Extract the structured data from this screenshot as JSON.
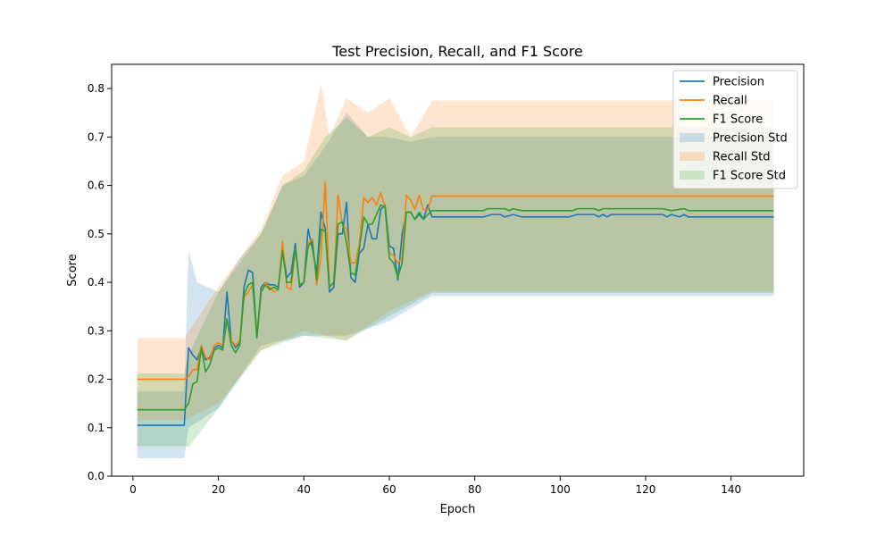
{
  "chart_data": {
    "type": "line",
    "title": "Test Precision, Recall, and F1 Score",
    "xlabel": "Epoch",
    "ylabel": "Score",
    "xlim": [
      -5,
      157
    ],
    "ylim": [
      0,
      0.85
    ],
    "xticks": [
      0,
      20,
      40,
      60,
      80,
      100,
      120,
      140
    ],
    "yticks": [
      0.0,
      0.1,
      0.2,
      0.3,
      0.4,
      0.5,
      0.6,
      0.7,
      0.8
    ],
    "xtick_labels": [
      "0",
      "20",
      "40",
      "60",
      "80",
      "100",
      "120",
      "140"
    ],
    "ytick_labels": [
      "0.0",
      "0.1",
      "0.2",
      "0.3",
      "0.4",
      "0.5",
      "0.6",
      "0.7",
      "0.8"
    ],
    "grid": false,
    "legend_position": "top-right",
    "series": [
      {
        "name": "Precision",
        "color": "#1f77b4",
        "points": [
          [
            1,
            0.105
          ],
          [
            12,
            0.105
          ],
          [
            13,
            0.265
          ],
          [
            14,
            0.25
          ],
          [
            15,
            0.24
          ],
          [
            16,
            0.265
          ],
          [
            17,
            0.24
          ],
          [
            18,
            0.245
          ],
          [
            19,
            0.265
          ],
          [
            20,
            0.27
          ],
          [
            21,
            0.265
          ],
          [
            22,
            0.38
          ],
          [
            23,
            0.28
          ],
          [
            24,
            0.265
          ],
          [
            25,
            0.275
          ],
          [
            26,
            0.39
          ],
          [
            27,
            0.425
          ],
          [
            28,
            0.42
          ],
          [
            29,
            0.29
          ],
          [
            30,
            0.39
          ],
          [
            31,
            0.4
          ],
          [
            32,
            0.395
          ],
          [
            33,
            0.395
          ],
          [
            34,
            0.39
          ],
          [
            35,
            0.47
          ],
          [
            36,
            0.41
          ],
          [
            37,
            0.42
          ],
          [
            38,
            0.48
          ],
          [
            39,
            0.39
          ],
          [
            40,
            0.4
          ],
          [
            41,
            0.51
          ],
          [
            42,
            0.47
          ],
          [
            43,
            0.42
          ],
          [
            44,
            0.545
          ],
          [
            45,
            0.51
          ],
          [
            46,
            0.38
          ],
          [
            47,
            0.39
          ],
          [
            48,
            0.5
          ],
          [
            49,
            0.5
          ],
          [
            50,
            0.565
          ],
          [
            51,
            0.41
          ],
          [
            52,
            0.4
          ],
          [
            53,
            0.46
          ],
          [
            54,
            0.47
          ],
          [
            55,
            0.52
          ],
          [
            56,
            0.49
          ],
          [
            57,
            0.49
          ],
          [
            58,
            0.55
          ],
          [
            59,
            0.56
          ],
          [
            60,
            0.475
          ],
          [
            61,
            0.47
          ],
          [
            62,
            0.405
          ],
          [
            63,
            0.5
          ],
          [
            64,
            0.545
          ],
          [
            65,
            0.545
          ],
          [
            66,
            0.53
          ],
          [
            67,
            0.54
          ],
          [
            68,
            0.53
          ],
          [
            69,
            0.56
          ],
          [
            70,
            0.535
          ],
          [
            82,
            0.535
          ],
          [
            84,
            0.54
          ],
          [
            86,
            0.54
          ],
          [
            87,
            0.535
          ],
          [
            89,
            0.54
          ],
          [
            91,
            0.535
          ],
          [
            102,
            0.535
          ],
          [
            104,
            0.54
          ],
          [
            108,
            0.54
          ],
          [
            109,
            0.535
          ],
          [
            110,
            0.54
          ],
          [
            111,
            0.535
          ],
          [
            112,
            0.54
          ],
          [
            124,
            0.54
          ],
          [
            125,
            0.535
          ],
          [
            126,
            0.54
          ],
          [
            128,
            0.535
          ],
          [
            129,
            0.54
          ],
          [
            130,
            0.535
          ],
          [
            150,
            0.535
          ]
        ],
        "std_lower": [
          [
            1,
            0.037
          ],
          [
            12,
            0.037
          ],
          [
            13,
            0.1
          ],
          [
            20,
            0.14
          ],
          [
            30,
            0.27
          ],
          [
            40,
            0.29
          ],
          [
            50,
            0.29
          ],
          [
            60,
            0.32
          ],
          [
            70,
            0.372
          ],
          [
            150,
            0.372
          ]
        ],
        "std_upper": [
          [
            1,
            0.175
          ],
          [
            12,
            0.175
          ],
          [
            13,
            0.465
          ],
          [
            15,
            0.4
          ],
          [
            20,
            0.38
          ],
          [
            25,
            0.45
          ],
          [
            30,
            0.5
          ],
          [
            35,
            0.6
          ],
          [
            40,
            0.62
          ],
          [
            45,
            0.68
          ],
          [
            50,
            0.75
          ],
          [
            55,
            0.7
          ],
          [
            60,
            0.7
          ],
          [
            65,
            0.69
          ],
          [
            70,
            0.7
          ],
          [
            150,
            0.7
          ]
        ]
      },
      {
        "name": "Recall",
        "color": "#ff7f0e",
        "points": [
          [
            1,
            0.2
          ],
          [
            12,
            0.2
          ],
          [
            13,
            0.205
          ],
          [
            14,
            0.22
          ],
          [
            15,
            0.22
          ],
          [
            16,
            0.27
          ],
          [
            17,
            0.245
          ],
          [
            18,
            0.24
          ],
          [
            19,
            0.27
          ],
          [
            20,
            0.275
          ],
          [
            21,
            0.27
          ],
          [
            22,
            0.32
          ],
          [
            23,
            0.28
          ],
          [
            24,
            0.27
          ],
          [
            25,
            0.28
          ],
          [
            26,
            0.37
          ],
          [
            27,
            0.38
          ],
          [
            28,
            0.395
          ],
          [
            29,
            0.29
          ],
          [
            30,
            0.38
          ],
          [
            31,
            0.4
          ],
          [
            32,
            0.39
          ],
          [
            33,
            0.38
          ],
          [
            34,
            0.385
          ],
          [
            35,
            0.485
          ],
          [
            36,
            0.39
          ],
          [
            37,
            0.385
          ],
          [
            38,
            0.47
          ],
          [
            39,
            0.395
          ],
          [
            40,
            0.4
          ],
          [
            41,
            0.48
          ],
          [
            42,
            0.49
          ],
          [
            43,
            0.395
          ],
          [
            44,
            0.45
          ],
          [
            45,
            0.607
          ],
          [
            46,
            0.39
          ],
          [
            47,
            0.4
          ],
          [
            48,
            0.58
          ],
          [
            49,
            0.52
          ],
          [
            50,
            0.51
          ],
          [
            51,
            0.44
          ],
          [
            52,
            0.44
          ],
          [
            53,
            0.48
          ],
          [
            54,
            0.575
          ],
          [
            55,
            0.565
          ],
          [
            56,
            0.575
          ],
          [
            57,
            0.56
          ],
          [
            58,
            0.585
          ],
          [
            59,
            0.555
          ],
          [
            60,
            0.46
          ],
          [
            61,
            0.455
          ],
          [
            62,
            0.44
          ],
          [
            63,
            0.45
          ],
          [
            64,
            0.58
          ],
          [
            65,
            0.57
          ],
          [
            66,
            0.55
          ],
          [
            67,
            0.58
          ],
          [
            68,
            0.55
          ],
          [
            69,
            0.55
          ],
          [
            70,
            0.578
          ],
          [
            150,
            0.578
          ]
        ],
        "std_lower": [
          [
            1,
            0.115
          ],
          [
            12,
            0.115
          ],
          [
            20,
            0.15
          ],
          [
            30,
            0.26
          ],
          [
            40,
            0.3
          ],
          [
            50,
            0.28
          ],
          [
            60,
            0.34
          ],
          [
            70,
            0.382
          ],
          [
            150,
            0.382
          ]
        ],
        "std_upper": [
          [
            1,
            0.285
          ],
          [
            12,
            0.285
          ],
          [
            20,
            0.39
          ],
          [
            30,
            0.51
          ],
          [
            35,
            0.62
          ],
          [
            40,
            0.65
          ],
          [
            44,
            0.81
          ],
          [
            46,
            0.7
          ],
          [
            50,
            0.78
          ],
          [
            55,
            0.75
          ],
          [
            60,
            0.78
          ],
          [
            65,
            0.7
          ],
          [
            70,
            0.775
          ],
          [
            150,
            0.775
          ]
        ]
      },
      {
        "name": "F1 Score",
        "color": "#2ca02c",
        "points": [
          [
            1,
            0.137
          ],
          [
            12,
            0.137
          ],
          [
            13,
            0.15
          ],
          [
            14,
            0.19
          ],
          [
            15,
            0.195
          ],
          [
            16,
            0.265
          ],
          [
            17,
            0.215
          ],
          [
            18,
            0.23
          ],
          [
            19,
            0.26
          ],
          [
            20,
            0.265
          ],
          [
            21,
            0.26
          ],
          [
            22,
            0.325
          ],
          [
            23,
            0.27
          ],
          [
            24,
            0.255
          ],
          [
            25,
            0.27
          ],
          [
            26,
            0.375
          ],
          [
            27,
            0.395
          ],
          [
            28,
            0.4
          ],
          [
            29,
            0.285
          ],
          [
            30,
            0.38
          ],
          [
            31,
            0.395
          ],
          [
            32,
            0.385
          ],
          [
            33,
            0.39
          ],
          [
            34,
            0.385
          ],
          [
            35,
            0.465
          ],
          [
            36,
            0.4
          ],
          [
            37,
            0.4
          ],
          [
            38,
            0.47
          ],
          [
            39,
            0.395
          ],
          [
            40,
            0.4
          ],
          [
            41,
            0.475
          ],
          [
            42,
            0.485
          ],
          [
            43,
            0.405
          ],
          [
            44,
            0.51
          ],
          [
            45,
            0.505
          ],
          [
            46,
            0.39
          ],
          [
            47,
            0.4
          ],
          [
            48,
            0.52
          ],
          [
            49,
            0.525
          ],
          [
            50,
            0.48
          ],
          [
            51,
            0.42
          ],
          [
            52,
            0.415
          ],
          [
            53,
            0.47
          ],
          [
            54,
            0.535
          ],
          [
            55,
            0.52
          ],
          [
            56,
            0.52
          ],
          [
            57,
            0.54
          ],
          [
            58,
            0.56
          ],
          [
            59,
            0.555
          ],
          [
            60,
            0.45
          ],
          [
            61,
            0.44
          ],
          [
            62,
            0.41
          ],
          [
            63,
            0.44
          ],
          [
            64,
            0.545
          ],
          [
            65,
            0.545
          ],
          [
            66,
            0.53
          ],
          [
            67,
            0.545
          ],
          [
            68,
            0.53
          ],
          [
            69,
            0.54
          ],
          [
            70,
            0.548
          ],
          [
            82,
            0.548
          ],
          [
            83,
            0.552
          ],
          [
            87,
            0.552
          ],
          [
            88,
            0.548
          ],
          [
            89,
            0.552
          ],
          [
            91,
            0.548
          ],
          [
            103,
            0.548
          ],
          [
            104,
            0.552
          ],
          [
            108,
            0.552
          ],
          [
            109,
            0.548
          ],
          [
            110,
            0.552
          ],
          [
            124,
            0.552
          ],
          [
            126,
            0.548
          ],
          [
            129,
            0.552
          ],
          [
            130,
            0.548
          ],
          [
            150,
            0.548
          ]
        ],
        "std_lower": [
          [
            1,
            0.062
          ],
          [
            12,
            0.062
          ],
          [
            13,
            0.06
          ],
          [
            20,
            0.14
          ],
          [
            30,
            0.26
          ],
          [
            40,
            0.29
          ],
          [
            50,
            0.28
          ],
          [
            60,
            0.33
          ],
          [
            70,
            0.378
          ],
          [
            150,
            0.378
          ]
        ],
        "std_upper": [
          [
            1,
            0.212
          ],
          [
            12,
            0.212
          ],
          [
            13,
            0.25
          ],
          [
            20,
            0.38
          ],
          [
            30,
            0.5
          ],
          [
            35,
            0.6
          ],
          [
            40,
            0.63
          ],
          [
            45,
            0.7
          ],
          [
            50,
            0.74
          ],
          [
            55,
            0.7
          ],
          [
            60,
            0.72
          ],
          [
            65,
            0.7
          ],
          [
            70,
            0.72
          ],
          [
            150,
            0.72
          ]
        ]
      }
    ],
    "legend_entries": [
      {
        "label": "Precision",
        "kind": "line",
        "color": "#1f77b4"
      },
      {
        "label": "Recall",
        "kind": "line",
        "color": "#ff7f0e"
      },
      {
        "label": "F1 Score",
        "kind": "line",
        "color": "#2ca02c"
      },
      {
        "label": "Precision Std",
        "kind": "band",
        "color": "#1f77b4"
      },
      {
        "label": "Recall Std",
        "kind": "band",
        "color": "#ff7f0e"
      },
      {
        "label": "F1 Score Std",
        "kind": "band",
        "color": "#2ca02c"
      }
    ]
  }
}
